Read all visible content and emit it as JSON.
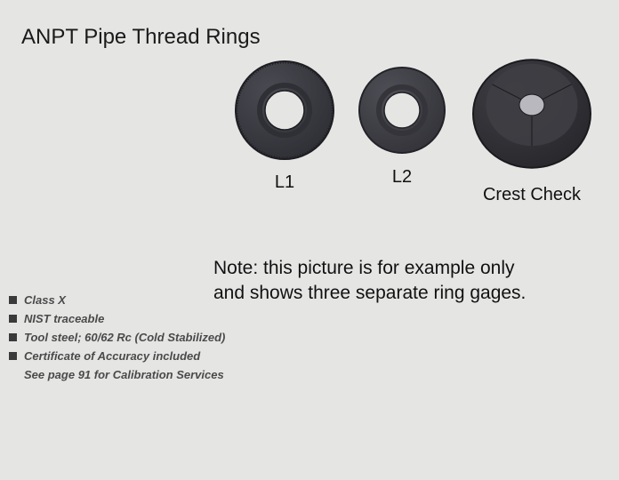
{
  "title": "ANPT Pipe Thread Rings",
  "rings": [
    {
      "label": "L1",
      "outer_radius": 55,
      "inner_radius": 22,
      "body_color": "#4a4a52",
      "body_dark": "#2f2f36",
      "edge_color": "#1e1e22",
      "hole_color": "#e5e6e4",
      "svg_size": 120,
      "knurled": true
    },
    {
      "label": "L2",
      "outer_radius": 48,
      "inner_radius": 20,
      "body_color": "#4e4e56",
      "body_dark": "#34343a",
      "edge_color": "#222228",
      "hole_color": "#e5e6e4",
      "svg_size": 108,
      "knurled": false
    },
    {
      "label": "Crest Check",
      "outer_radius": 66,
      "inner_radius": 14,
      "body_color": "#3e3e44",
      "body_dark": "#28282d",
      "edge_color": "#1a1a1e",
      "hole_color": "#b8b8be",
      "svg_size": 148,
      "tapered": true
    }
  ],
  "note_line1": "Note: this picture is for example only",
  "note_line2": "and shows three separate ring gages.",
  "features": [
    {
      "text": "Class X",
      "bullet": true
    },
    {
      "text": "NIST traceable",
      "bullet": true
    },
    {
      "text": "Tool steel; 60/62 Rc (Cold Stabilized)",
      "bullet": true
    },
    {
      "text": "Certificate of Accuracy included",
      "bullet": true
    },
    {
      "text": "See page 91 for Calibration Services",
      "bullet": false
    }
  ],
  "colors": {
    "background": "#e5e6e4",
    "text": "#111111",
    "feature_text": "#4a4a4a",
    "bullet": "#3a3a3a"
  },
  "fonts": {
    "title_size": 24,
    "label_size": 20,
    "note_size": 21,
    "feature_size": 13
  }
}
